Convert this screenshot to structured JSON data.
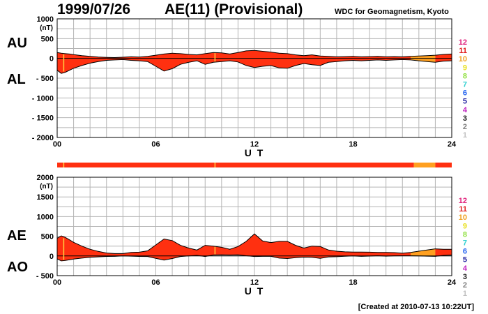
{
  "header": {
    "date": "1999/07/26",
    "index_title": "AE(11) (Provisional)",
    "org": "WDC for Geomagnetism, Kyoto"
  },
  "labels": {
    "au": "AU",
    "al": "AL",
    "ae": "AE",
    "ao": "AO"
  },
  "footer": "[Created at 2010-07-13 10:22UT]",
  "colors": {
    "fill": "#ff3010",
    "fill_late": "#ffa020",
    "line": "#000000",
    "grid": "#b4b4b4",
    "bar_mark": "#ffd040"
  },
  "chart_data": [
    {
      "type": "area",
      "name": "AU/AL",
      "xlabel": "U T",
      "ylabel": "(nT)",
      "xlim": [
        0,
        24
      ],
      "ylim": [
        -2000,
        1000
      ],
      "xticks": [
        "00",
        "06",
        "12",
        "18",
        "24"
      ],
      "yticks": [
        1000,
        500,
        0,
        -500,
        -1000,
        -1500,
        -2000
      ],
      "x": [
        0,
        0.25,
        0.5,
        0.75,
        1,
        1.5,
        2,
        2.5,
        3,
        3.5,
        4,
        4.5,
        5,
        5.5,
        6,
        6.5,
        7,
        7.5,
        8,
        8.5,
        9,
        9.5,
        10,
        10.5,
        11,
        11.5,
        12,
        12.5,
        13,
        13.5,
        14,
        14.5,
        15,
        15.5,
        16,
        16.5,
        17,
        17.5,
        18,
        18.5,
        19,
        19.5,
        20,
        20.5,
        21,
        21.5,
        22,
        22.5,
        23,
        23.5,
        24
      ],
      "series": [
        {
          "name": "AU",
          "values": [
            150,
            130,
            120,
            110,
            95,
            70,
            50,
            35,
            25,
            20,
            30,
            40,
            35,
            50,
            80,
            110,
            130,
            120,
            100,
            90,
            120,
            150,
            140,
            110,
            150,
            190,
            200,
            180,
            160,
            130,
            120,
            90,
            70,
            90,
            60,
            50,
            40,
            45,
            50,
            40,
            45,
            50,
            40,
            45,
            40,
            50,
            60,
            70,
            80,
            100,
            110
          ]
        },
        {
          "name": "AL",
          "values": [
            -300,
            -380,
            -350,
            -300,
            -250,
            -180,
            -120,
            -80,
            -50,
            -40,
            -30,
            -50,
            -60,
            -80,
            -200,
            -320,
            -260,
            -150,
            -100,
            -60,
            -150,
            -100,
            -80,
            -60,
            -90,
            -180,
            -230,
            -200,
            -180,
            -240,
            -250,
            -180,
            -130,
            -160,
            -180,
            -100,
            -80,
            -60,
            -50,
            -60,
            -50,
            -40,
            -50,
            -40,
            -30,
            -40,
            -60,
            -80,
            -100,
            -70,
            -60
          ]
        }
      ]
    },
    {
      "type": "area",
      "name": "AE/AO",
      "xlabel": "U T",
      "ylabel": "(nT)",
      "xlim": [
        0,
        24
      ],
      "ylim": [
        -500,
        2000
      ],
      "xticks": [
        "00",
        "06",
        "12",
        "18",
        "24"
      ],
      "yticks": [
        2000,
        1500,
        1000,
        500,
        0,
        -500
      ],
      "x": [
        0,
        0.25,
        0.5,
        0.75,
        1,
        1.5,
        2,
        2.5,
        3,
        3.5,
        4,
        4.5,
        5,
        5.5,
        6,
        6.5,
        7,
        7.5,
        8,
        8.5,
        9,
        9.5,
        10,
        10.5,
        11,
        11.5,
        12,
        12.5,
        13,
        13.5,
        14,
        14.5,
        15,
        15.5,
        16,
        16.5,
        17,
        17.5,
        18,
        18.5,
        19,
        19.5,
        20,
        20.5,
        21,
        21.5,
        22,
        22.5,
        23,
        23.5,
        24
      ],
      "series": [
        {
          "name": "AE",
          "values": [
            450,
            510,
            470,
            410,
            345,
            250,
            170,
            115,
            75,
            60,
            60,
            90,
            95,
            130,
            280,
            430,
            390,
            270,
            200,
            150,
            270,
            250,
            220,
            170,
            240,
            370,
            560,
            380,
            340,
            370,
            370,
            270,
            200,
            250,
            240,
            150,
            120,
            105,
            100,
            100,
            95,
            90,
            90,
            85,
            70,
            90,
            120,
            150,
            180,
            170,
            170
          ]
        },
        {
          "name": "AO",
          "values": [
            -75,
            -125,
            -115,
            -95,
            -78,
            -55,
            -35,
            -23,
            -13,
            -10,
            0,
            -5,
            -13,
            -15,
            -60,
            -105,
            -65,
            -15,
            0,
            15,
            -15,
            25,
            30,
            25,
            30,
            5,
            -15,
            -10,
            -10,
            -55,
            -65,
            -45,
            -30,
            -35,
            -60,
            -25,
            -20,
            -8,
            0,
            -10,
            -3,
            5,
            -5,
            3,
            5,
            5,
            0,
            -5,
            -10,
            15,
            25
          ]
        }
      ]
    }
  ],
  "quality_bar": {
    "segments": [
      {
        "from": 0,
        "to": 21.7,
        "level": 11
      },
      {
        "from": 21.7,
        "to": 23,
        "level": 10
      },
      {
        "from": 23,
        "to": 24,
        "level": 11
      }
    ],
    "marks": [
      0.4,
      9.6
    ]
  },
  "legend": [
    {
      "label": "12",
      "color": "#e0207a"
    },
    {
      "label": "11",
      "color": "#e02020"
    },
    {
      "label": "10",
      "color": "#f0a020"
    },
    {
      "label": "9",
      "color": "#e8e020"
    },
    {
      "label": "8",
      "color": "#90e040"
    },
    {
      "label": "7",
      "color": "#30d0d0"
    },
    {
      "label": "6",
      "color": "#2060f0"
    },
    {
      "label": "5",
      "color": "#2020a0"
    },
    {
      "label": "4",
      "color": "#c020c0"
    },
    {
      "label": "3",
      "color": "#202020"
    },
    {
      "label": "2",
      "color": "#808080"
    },
    {
      "label": "1",
      "color": "#c0c0c0"
    }
  ]
}
